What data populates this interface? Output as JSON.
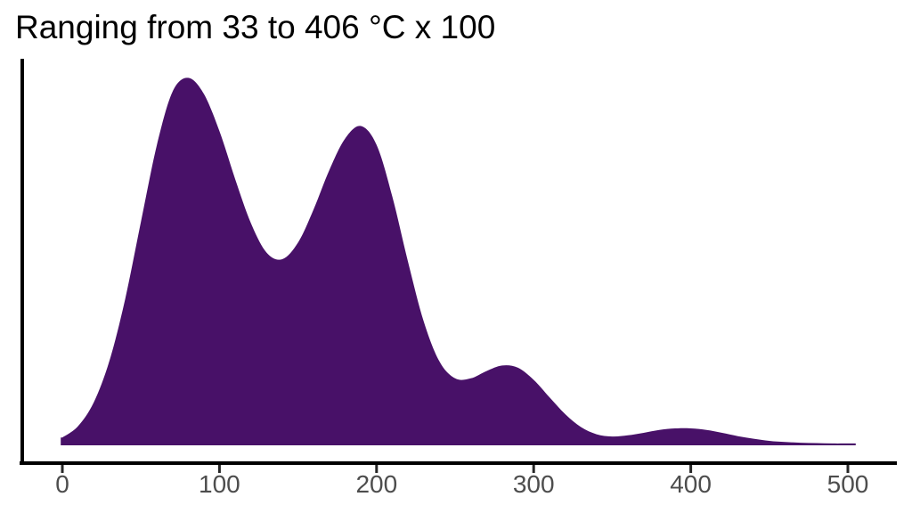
{
  "title": {
    "text": "Ranging from 33 to 406 °C x 100"
  },
  "colors": {
    "background": "#ffffff",
    "area_fill": "#481168",
    "axis_line": "#000000",
    "tick_mark": "#262626",
    "tick_label": "#4d4d4d",
    "title_text": "#000000"
  },
  "x_axis": {
    "tick_values": [
      0,
      100,
      200,
      300,
      400,
      500
    ],
    "tick_labels": [
      "0",
      "100",
      "200",
      "300",
      "400",
      "500"
    ]
  },
  "y_axis": {
    "tick_values": [],
    "tick_labels": []
  },
  "chart_data": {
    "type": "area",
    "subtype": "kernel-density",
    "title": "Ranging from 33 to 406 °C x 100",
    "xlabel": "",
    "ylabel": "",
    "xlim": [
      -1,
      506
    ],
    "ylim": [
      0,
      1.05
    ],
    "grid": false,
    "legend": false,
    "peaks": [
      {
        "x": 78,
        "y": 1.0
      },
      {
        "x": 191,
        "y": 0.87
      },
      {
        "x": 284,
        "y": 0.22
      },
      {
        "x": 394,
        "y": 0.046
      }
    ],
    "series": [
      {
        "name": "density",
        "x": [
          0,
          10,
          20,
          30,
          40,
          50,
          60,
          70,
          80,
          90,
          100,
          110,
          120,
          130,
          140,
          150,
          160,
          170,
          180,
          190,
          200,
          210,
          220,
          230,
          240,
          250,
          260,
          270,
          280,
          290,
          300,
          310,
          320,
          330,
          340,
          350,
          360,
          370,
          380,
          390,
          400,
          410,
          420,
          430,
          440,
          450,
          460,
          470,
          480,
          490,
          500,
          505
        ],
        "y": [
          0.021,
          0.052,
          0.117,
          0.23,
          0.398,
          0.607,
          0.813,
          0.96,
          0.999,
          0.956,
          0.854,
          0.724,
          0.604,
          0.524,
          0.506,
          0.551,
          0.642,
          0.749,
          0.834,
          0.868,
          0.817,
          0.677,
          0.499,
          0.337,
          0.228,
          0.182,
          0.182,
          0.202,
          0.217,
          0.211,
          0.178,
          0.131,
          0.085,
          0.05,
          0.03,
          0.024,
          0.027,
          0.034,
          0.042,
          0.046,
          0.046,
          0.042,
          0.034,
          0.025,
          0.018,
          0.012,
          0.009,
          0.007,
          0.006,
          0.005,
          0.005,
          0.005
        ]
      }
    ]
  }
}
